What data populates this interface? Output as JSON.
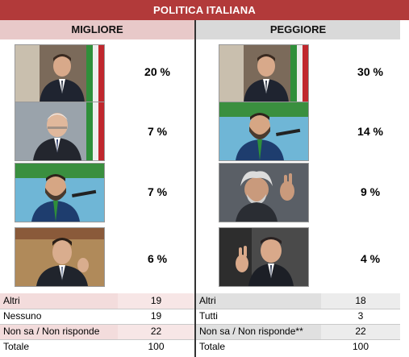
{
  "title": "POLITICA ITALIANA",
  "best": {
    "heading": "MIGLIORE",
    "people": [
      {
        "photo_icon": "person-portrait-1-icon",
        "pct": "20 %"
      },
      {
        "photo_icon": "person-portrait-2-icon",
        "pct": "7 %"
      },
      {
        "photo_icon": "person-portrait-3-icon",
        "pct": "7 %"
      },
      {
        "photo_icon": "person-portrait-4-icon",
        "pct": "6 %"
      }
    ],
    "rows": [
      {
        "label": "Altri",
        "value": "19"
      },
      {
        "label": "Nessuno",
        "value": "19"
      },
      {
        "label": "Non sa / Non risponde",
        "value": "22"
      },
      {
        "label": "Totale",
        "value": "100"
      }
    ]
  },
  "worst": {
    "heading": "PEGGIORE",
    "people": [
      {
        "photo_icon": "person-portrait-1-icon",
        "pct": "30 %"
      },
      {
        "photo_icon": "person-portrait-3-icon",
        "pct": "14 %"
      },
      {
        "photo_icon": "person-portrait-5-icon",
        "pct": "9 %"
      },
      {
        "photo_icon": "person-portrait-6-icon",
        "pct": "4 %"
      }
    ],
    "rows": [
      {
        "label": "Altri",
        "value": "18"
      },
      {
        "label": "Tutti",
        "value": "3"
      },
      {
        "label": "Non sa / Non risponde**",
        "value": "22"
      },
      {
        "label": "Totale",
        "value": "100"
      }
    ]
  },
  "colors": {
    "title_bar": "#b23a3a",
    "best_header": "#e8c9c9",
    "worst_header": "#d9d9d9",
    "flag_green": "#2f8f3a",
    "flag_red": "#c0272d"
  }
}
